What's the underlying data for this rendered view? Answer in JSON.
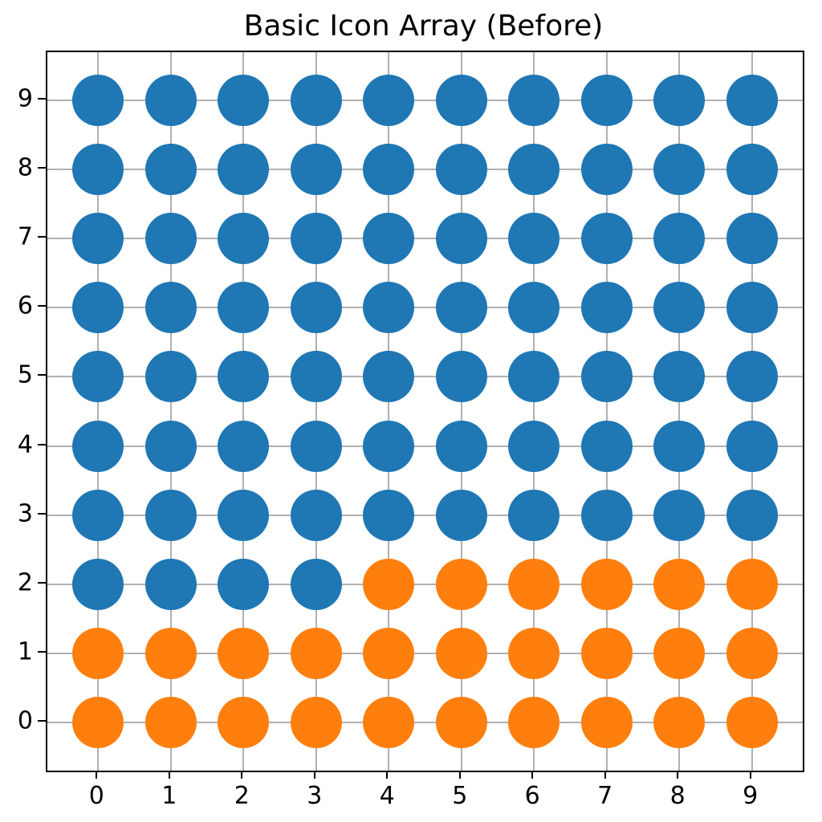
{
  "chart_data": {
    "type": "scatter",
    "variant": "icon-array",
    "title": "Basic Icon Array (Before)",
    "xlabel": "",
    "ylabel": "",
    "x_ticks": [
      0,
      1,
      2,
      3,
      4,
      5,
      6,
      7,
      8,
      9
    ],
    "y_ticks": [
      0,
      1,
      2,
      3,
      4,
      5,
      6,
      7,
      8,
      9
    ],
    "xlim": [
      -0.7,
      9.7
    ],
    "ylim": [
      -0.7,
      9.7
    ],
    "grid": true,
    "grid_color": "#b0b0b0",
    "spine_color": "#000000",
    "background_color": "#ffffff",
    "colors": {
      "B": "#1f77b4",
      "O": "#ff7f0e"
    },
    "legend": null,
    "rows": [
      {
        "y": 0,
        "cells": "OOOOOOOOOO"
      },
      {
        "y": 1,
        "cells": "OOOOOOOOOO"
      },
      {
        "y": 2,
        "cells": "BBBBOOOOOO"
      },
      {
        "y": 3,
        "cells": "BBBBBBBBBB"
      },
      {
        "y": 4,
        "cells": "BBBBBBBBBB"
      },
      {
        "y": 5,
        "cells": "BBBBBBBBBB"
      },
      {
        "y": 6,
        "cells": "BBBBBBBBBB"
      },
      {
        "y": 7,
        "cells": "BBBBBBBBBB"
      },
      {
        "y": 8,
        "cells": "BBBBBBBBBB"
      },
      {
        "y": 9,
        "cells": "BBBBBBBBBB"
      }
    ],
    "counts": {
      "orange": 26,
      "blue": 74,
      "total": 100
    }
  }
}
